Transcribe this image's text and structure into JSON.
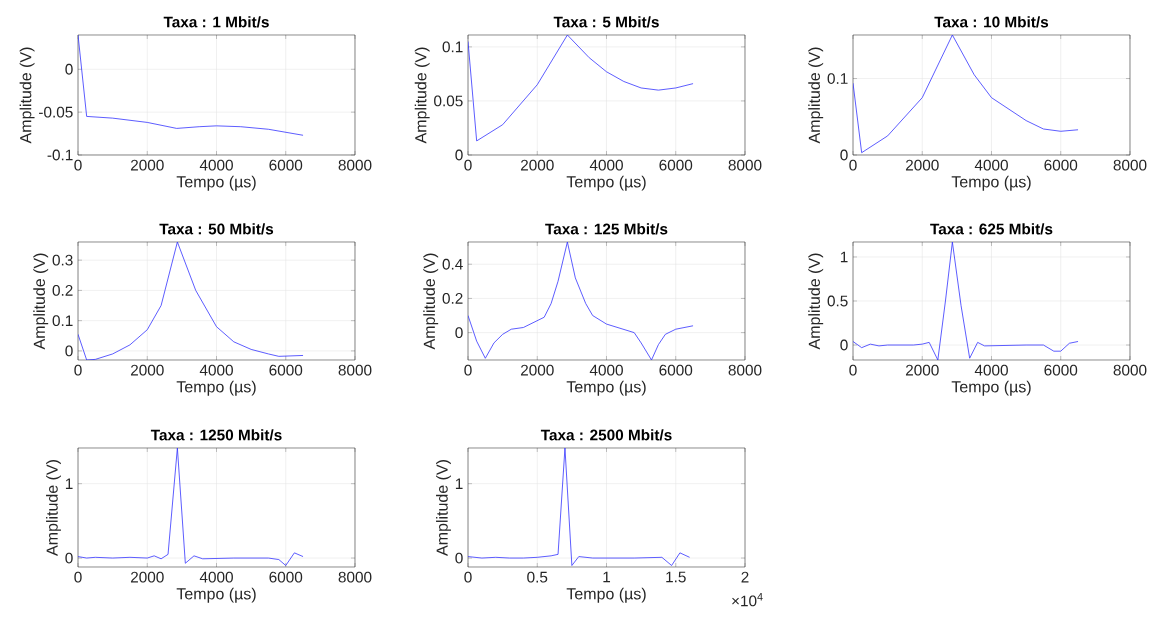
{
  "chart_data": [
    {
      "type": "line",
      "title": "Taxa : 1 Mbit/s",
      "xlabel": "Tempo (µs)",
      "ylabel": "Amplitude (V)",
      "color": "#3333ff",
      "grid": true,
      "xlim": [
        0,
        8000
      ],
      "xticks": [
        0,
        2000,
        4000,
        6000,
        8000
      ],
      "ylim": [
        -0.1,
        0.04
      ],
      "yticks": [
        -0.1,
        -0.05,
        0
      ],
      "x": [
        0,
        250,
        1000,
        2000,
        2850,
        3500,
        4000,
        4700,
        5500,
        6500
      ],
      "values": [
        0.04,
        -0.055,
        -0.057,
        -0.062,
        -0.069,
        -0.067,
        -0.066,
        -0.067,
        -0.07,
        -0.077
      ]
    },
    {
      "type": "line",
      "title": "Taxa : 5 Mbit/s",
      "xlabel": "Tempo (µs)",
      "ylabel": "Amplitude (V)",
      "color": "#3333ff",
      "grid": true,
      "xlim": [
        0,
        8000
      ],
      "xticks": [
        0,
        2000,
        4000,
        6000,
        8000
      ],
      "ylim": [
        0,
        0.111
      ],
      "yticks": [
        0,
        0.05,
        0.1
      ],
      "x": [
        0,
        250,
        1000,
        2000,
        2870,
        3500,
        4000,
        4500,
        5000,
        5500,
        6000,
        6500
      ],
      "values": [
        0.105,
        0.013,
        0.028,
        0.065,
        0.111,
        0.09,
        0.077,
        0.068,
        0.062,
        0.06,
        0.062,
        0.066
      ]
    },
    {
      "type": "line",
      "title": "Taxa : 10 Mbit/s",
      "xlabel": "Tempo (µs)",
      "ylabel": "Amplitude (V)",
      "color": "#3333ff",
      "grid": true,
      "xlim": [
        0,
        8000
      ],
      "xticks": [
        0,
        2000,
        4000,
        6000,
        8000
      ],
      "ylim": [
        0,
        0.157
      ],
      "yticks": [
        0,
        0.1
      ],
      "x": [
        0,
        250,
        1000,
        2000,
        2870,
        3500,
        4000,
        5000,
        5500,
        6000,
        6500
      ],
      "values": [
        0.094,
        0.003,
        0.025,
        0.075,
        0.157,
        0.105,
        0.075,
        0.045,
        0.034,
        0.031,
        0.033
      ]
    },
    {
      "type": "line",
      "title": "Taxa : 50 Mbit/s",
      "xlabel": "Tempo (µs)",
      "ylabel": "Amplitude (V)",
      "color": "#3333ff",
      "grid": true,
      "xlim": [
        0,
        8000
      ],
      "xticks": [
        0,
        2000,
        4000,
        6000,
        8000
      ],
      "ylim": [
        -0.03,
        0.36
      ],
      "yticks": [
        0,
        0.1,
        0.2,
        0.3
      ],
      "x": [
        0,
        250,
        500,
        1000,
        1500,
        2000,
        2400,
        2870,
        3400,
        4000,
        4500,
        5000,
        5500,
        5800,
        6500
      ],
      "values": [
        0.055,
        -0.03,
        -0.028,
        -0.01,
        0.02,
        0.07,
        0.15,
        0.36,
        0.2,
        0.08,
        0.03,
        0.005,
        -0.01,
        -0.018,
        -0.015
      ]
    },
    {
      "type": "line",
      "title": "Taxa : 125 Mbit/s",
      "xlabel": "Tempo (µs)",
      "ylabel": "Amplitude (V)",
      "color": "#3333ff",
      "grid": true,
      "xlim": [
        0,
        8000
      ],
      "xticks": [
        0,
        2000,
        4000,
        6000,
        8000
      ],
      "ylim": [
        -0.16,
        0.53
      ],
      "yticks": [
        0,
        0.2,
        0.4
      ],
      "x": [
        0,
        250,
        500,
        750,
        1000,
        1250,
        1600,
        2200,
        2400,
        2600,
        2870,
        3100,
        3400,
        3600,
        4000,
        4800,
        5000,
        5300,
        5500,
        5700,
        6000,
        6500
      ],
      "values": [
        0.1,
        -0.05,
        -0.15,
        -0.06,
        -0.01,
        0.02,
        0.03,
        0.09,
        0.17,
        0.3,
        0.53,
        0.32,
        0.17,
        0.1,
        0.05,
        0.0,
        -0.06,
        -0.16,
        -0.07,
        -0.01,
        0.02,
        0.04
      ]
    },
    {
      "type": "line",
      "title": "Taxa : 625 Mbit/s",
      "xlabel": "Tempo (µs)",
      "ylabel": "Amplitude (V)",
      "color": "#3333ff",
      "grid": true,
      "xlim": [
        0,
        8000
      ],
      "xticks": [
        0,
        2000,
        4000,
        6000,
        8000
      ],
      "ylim": [
        -0.17,
        1.17
      ],
      "yticks": [
        0,
        0.5,
        1
      ],
      "x": [
        0,
        250,
        500,
        750,
        1000,
        1750,
        2000,
        2200,
        2450,
        2670,
        2870,
        3120,
        3370,
        3600,
        3800,
        5000,
        5500,
        5800,
        6000,
        6250,
        6500
      ],
      "values": [
        0.04,
        -0.03,
        0.01,
        -0.01,
        0.0,
        0.0,
        0.01,
        0.03,
        -0.17,
        0.5,
        1.17,
        0.45,
        -0.15,
        0.03,
        -0.01,
        0.0,
        0.0,
        -0.07,
        -0.07,
        0.02,
        0.04
      ]
    },
    {
      "type": "line",
      "title": "Taxa : 1250 Mbit/s",
      "xlabel": "Tempo (µs)",
      "ylabel": "Amplitude (V)",
      "color": "#3333ff",
      "grid": true,
      "xlim": [
        0,
        8000
      ],
      "xticks": [
        0,
        2000,
        4000,
        6000,
        8000
      ],
      "ylim": [
        -0.12,
        1.48
      ],
      "yticks": [
        0,
        1
      ],
      "x": [
        0,
        250,
        500,
        1000,
        1500,
        2000,
        2200,
        2400,
        2600,
        2870,
        3100,
        3350,
        3600,
        4500,
        5500,
        5800,
        6000,
        6250,
        6500
      ],
      "values": [
        0.02,
        0.0,
        0.01,
        0.0,
        0.01,
        0.0,
        0.03,
        -0.01,
        0.05,
        1.48,
        -0.07,
        0.03,
        -0.01,
        0.0,
        0.0,
        -0.02,
        -0.1,
        0.07,
        0.02
      ]
    },
    {
      "type": "line",
      "title": "Taxa : 2500 Mbit/s",
      "xlabel": "Tempo (µs)",
      "ylabel": "Amplitude (V)",
      "color": "#3333ff",
      "grid": true,
      "xlim": [
        0,
        2
      ],
      "xticks": [
        0,
        0.5,
        1,
        1.5,
        2
      ],
      "ylim": [
        -0.12,
        1.48
      ],
      "yticks": [
        0,
        1
      ],
      "x": [
        0,
        0.1,
        0.2,
        0.3,
        0.4,
        0.5,
        0.6,
        0.65,
        0.7,
        0.75,
        0.8,
        0.9,
        1.0,
        1.2,
        1.4,
        1.47,
        1.53,
        1.6
      ],
      "values": [
        0.02,
        0.0,
        0.01,
        0.0,
        0.0,
        0.01,
        0.03,
        0.05,
        1.48,
        -0.1,
        0.02,
        0.0,
        0.0,
        0.0,
        0.01,
        -0.1,
        0.07,
        0.01
      ],
      "annotations": [
        "×10$^{4}$"
      ]
    }
  ]
}
